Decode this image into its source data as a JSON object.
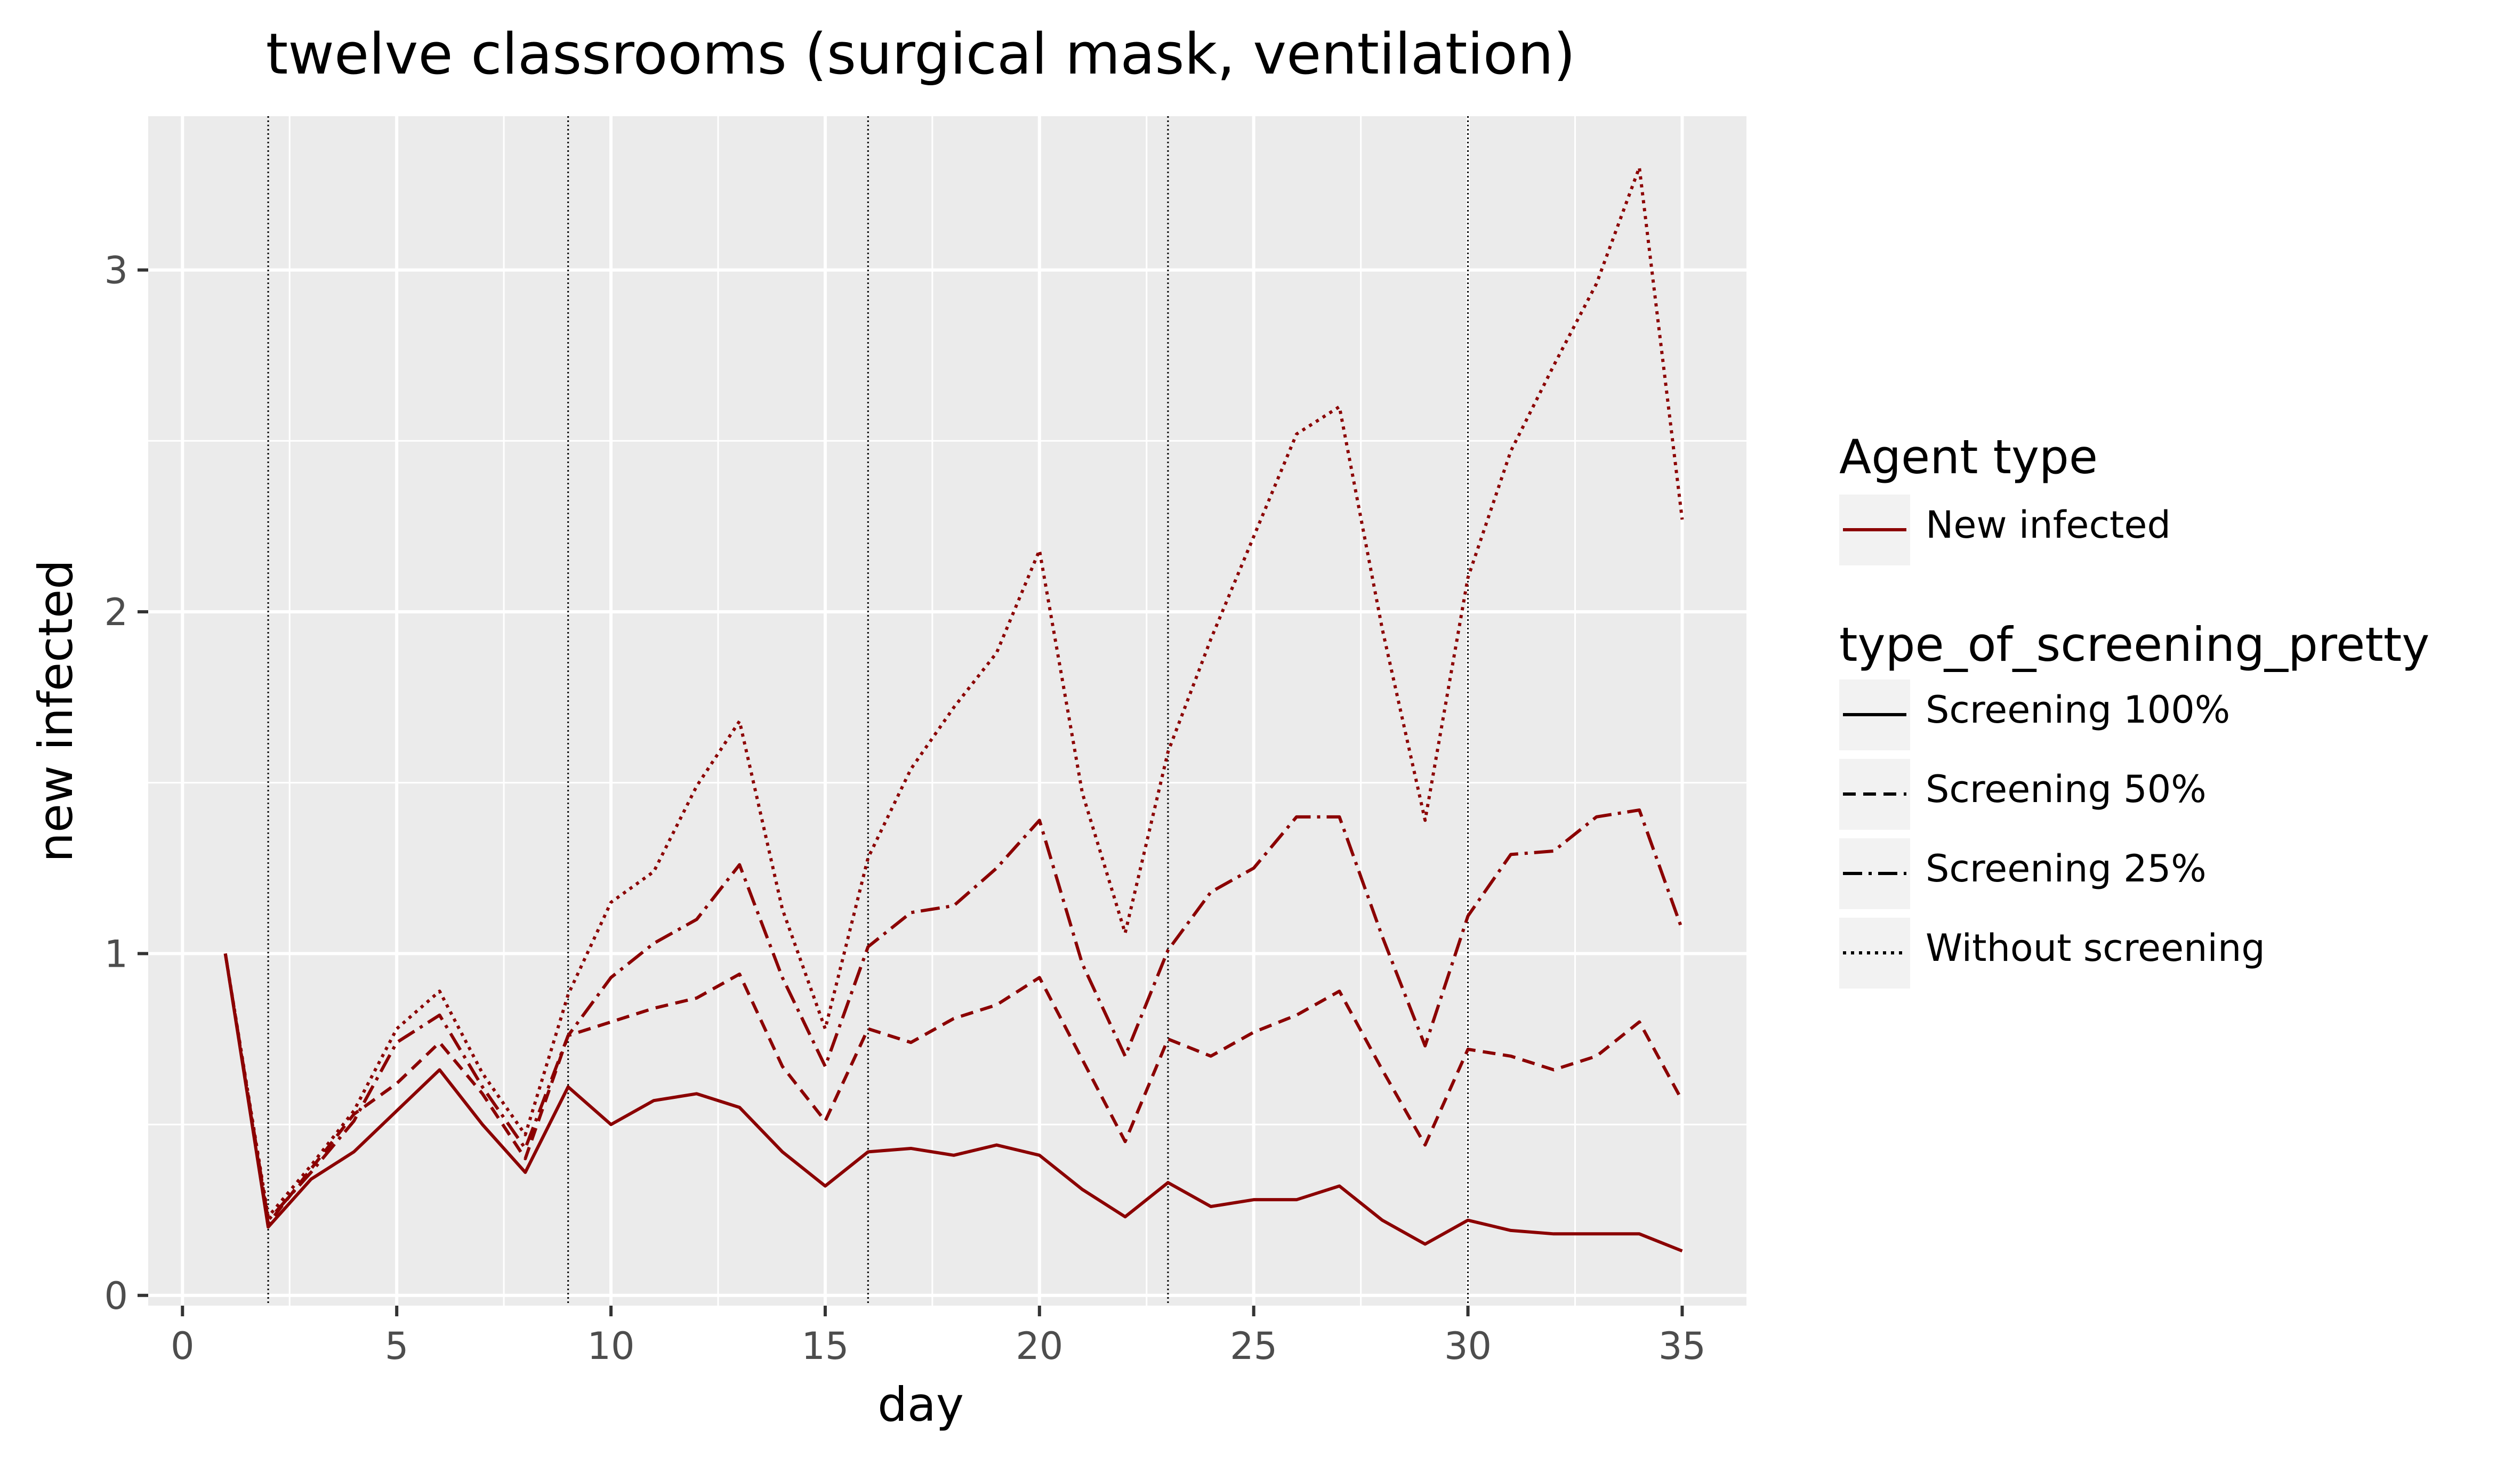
{
  "chart_data": {
    "type": "line",
    "title": "twelve classrooms (surgical mask, ventilation)",
    "xlabel": "day",
    "ylabel": "new infected",
    "xlim": [
      -0.8,
      36.5
    ],
    "ylim": [
      -0.03,
      3.45
    ],
    "xticks": [
      "0",
      "5",
      "10",
      "15",
      "20",
      "25",
      "30",
      "35"
    ],
    "yticks": [
      "0",
      "1",
      "2",
      "3"
    ],
    "vlines": [
      2,
      9,
      16,
      23,
      30
    ],
    "color": "#8b0000",
    "grid": true,
    "legend_position": "right",
    "legend": {
      "color_title": "Agent type",
      "color_entries": [
        "New infected"
      ],
      "linetype_title": "type_of_screening_pretty",
      "linetype_entries": [
        "Screening 100%",
        "Screening 50%",
        "Screening 25%",
        "Without screening"
      ]
    },
    "x": [
      1,
      2,
      3,
      4,
      5,
      6,
      7,
      8,
      9,
      10,
      11,
      12,
      13,
      14,
      15,
      16,
      17,
      18,
      19,
      20,
      21,
      22,
      23,
      24,
      25,
      26,
      27,
      28,
      29,
      30,
      31,
      32,
      33,
      34,
      35
    ],
    "series": [
      {
        "name": "Screening 100%",
        "linetype": "solid",
        "values": [
          1.0,
          0.2,
          0.34,
          0.42,
          0.54,
          0.66,
          0.5,
          0.36,
          0.61,
          0.5,
          0.57,
          0.59,
          0.55,
          0.42,
          0.32,
          0.42,
          0.43,
          0.41,
          0.44,
          0.41,
          0.31,
          0.23,
          0.33,
          0.26,
          0.28,
          0.28,
          0.32,
          0.22,
          0.15,
          0.22,
          0.19,
          0.18,
          0.18,
          0.18,
          0.13
        ]
      },
      {
        "name": "Screening 50%",
        "linetype": "dashed",
        "values": [
          1.0,
          0.21,
          0.37,
          0.53,
          0.62,
          0.74,
          0.59,
          0.4,
          0.76,
          0.8,
          0.84,
          0.87,
          0.94,
          0.67,
          0.51,
          0.78,
          0.74,
          0.81,
          0.85,
          0.93,
          0.69,
          0.45,
          0.75,
          0.7,
          0.77,
          0.82,
          0.89,
          0.66,
          0.44,
          0.72,
          0.7,
          0.66,
          0.7,
          0.8,
          0.57
        ]
      },
      {
        "name": "Screening 25%",
        "linetype": "dashdot",
        "values": [
          1.0,
          0.22,
          0.36,
          0.51,
          0.74,
          0.82,
          0.61,
          0.43,
          0.76,
          0.93,
          1.03,
          1.1,
          1.26,
          0.93,
          0.67,
          1.02,
          1.12,
          1.14,
          1.25,
          1.39,
          0.97,
          0.7,
          1.01,
          1.18,
          1.25,
          1.4,
          1.4,
          1.05,
          0.73,
          1.11,
          1.29,
          1.3,
          1.4,
          1.42,
          1.07
        ]
      },
      {
        "name": "Without screening",
        "linetype": "dotted",
        "values": [
          1.0,
          0.23,
          0.38,
          0.54,
          0.78,
          0.89,
          0.65,
          0.47,
          0.88,
          1.15,
          1.24,
          1.49,
          1.68,
          1.13,
          0.78,
          1.28,
          1.54,
          1.72,
          1.88,
          2.18,
          1.47,
          1.06,
          1.59,
          1.92,
          2.22,
          2.52,
          2.6,
          1.95,
          1.39,
          2.1,
          2.47,
          2.72,
          2.96,
          3.3,
          2.27
        ]
      }
    ]
  }
}
